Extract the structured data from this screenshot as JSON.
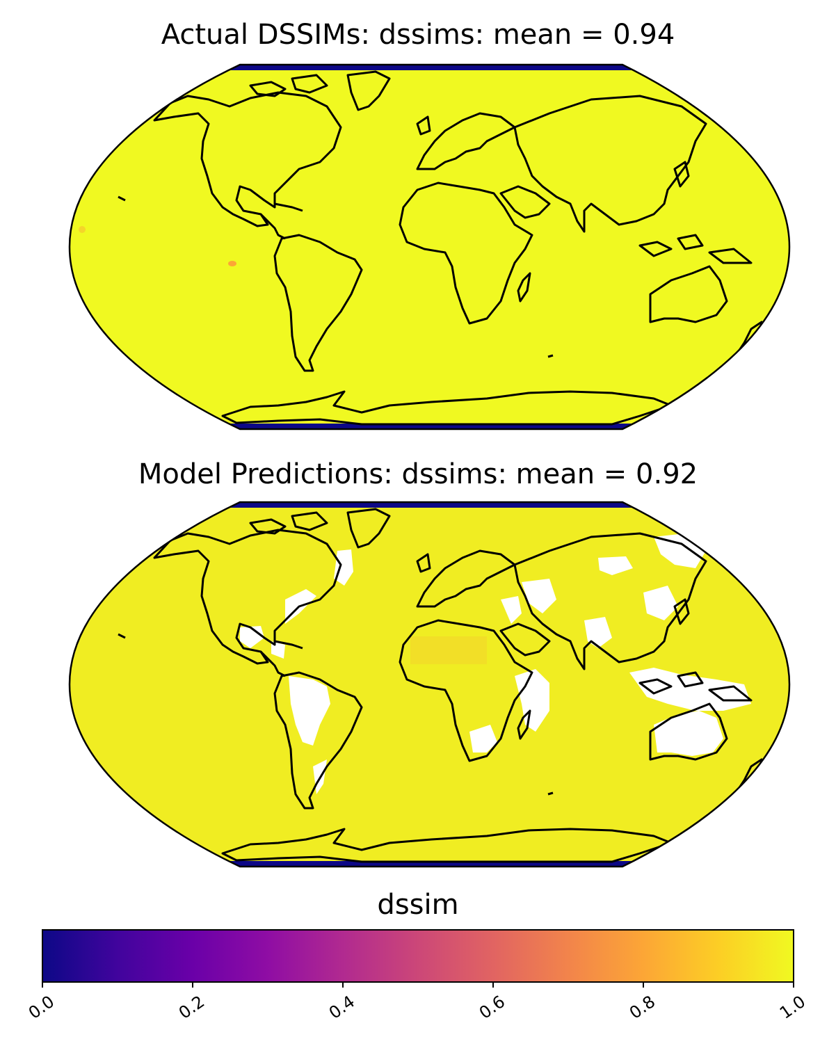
{
  "figure": {
    "panels": [
      {
        "title": "Actual DSSIMs: dssims: mean = 0.94",
        "mean": 0.94
      },
      {
        "title": "Model Predictions: dssims: mean = 0.92",
        "mean": 0.92
      }
    ],
    "colorbar": {
      "label": "dssim",
      "colormap": "plasma",
      "range": [
        0.0,
        1.0
      ],
      "ticks": [
        "0.0",
        "0.2",
        "0.4",
        "0.6",
        "0.8",
        "1.0"
      ]
    },
    "colors": {
      "high": "#f0f921",
      "low": "#0d0887",
      "coast": "#000000",
      "missing": "#ffffff"
    }
  }
}
